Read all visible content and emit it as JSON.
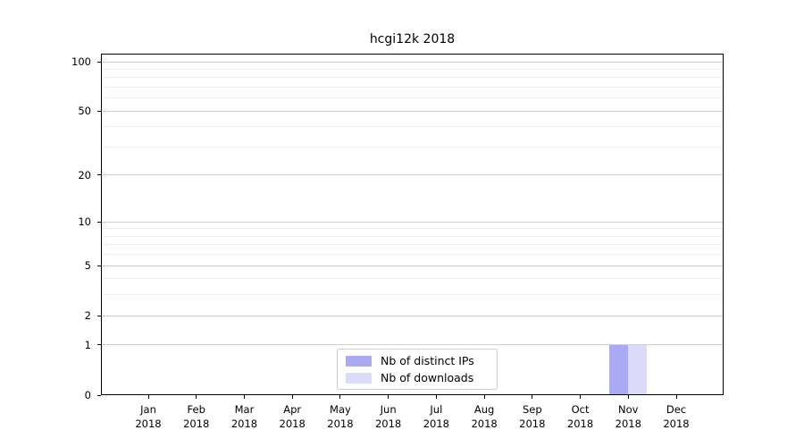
{
  "chart_data": {
    "type": "bar",
    "title": "hcgi12k 2018",
    "x": {
      "months": [
        "Jan",
        "Feb",
        "Mar",
        "Apr",
        "May",
        "Jun",
        "Jul",
        "Aug",
        "Sep",
        "Oct",
        "Nov",
        "Dec"
      ],
      "year": "2018"
    },
    "series": [
      {
        "name": "Nb of distinct IPs",
        "color": "#a9a9f4",
        "values": [
          0,
          0,
          0,
          0,
          0,
          0,
          0,
          0,
          0,
          0,
          1,
          0
        ]
      },
      {
        "name": "Nb of downloads",
        "color": "#dcdcfa",
        "values": [
          0,
          0,
          0,
          0,
          0,
          0,
          0,
          0,
          0,
          0,
          1,
          0
        ]
      }
    ],
    "y_axis": {
      "scale": "log10(v+1)",
      "ticks": [
        0,
        1,
        2,
        5,
        10,
        20,
        50,
        100
      ],
      "minor_ticks": [
        3,
        4,
        6,
        7,
        8,
        9,
        30,
        40,
        60,
        70,
        80,
        90
      ],
      "max": 112
    },
    "grid": true,
    "legend": {
      "position": "lower center"
    }
  },
  "colors": {
    "major_grid": "#cfcfcf",
    "minor_grid": "#ededed",
    "spine": "#000000",
    "legend_border": "#cccccc"
  }
}
